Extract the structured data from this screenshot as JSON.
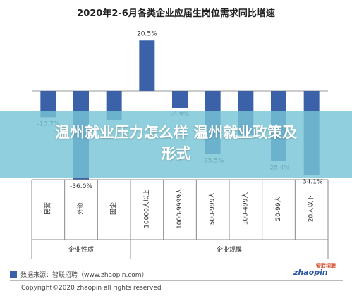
{
  "chart_data": {
    "type": "bar",
    "title": "2020年2-6月各类企业应届生岗位需求同比增速",
    "categories": [
      "民营",
      "外资",
      "国企",
      "10000人以上",
      "1000-9999人",
      "500-999人",
      "100-499人",
      "20-99人",
      "20人以下"
    ],
    "values": [
      -10.7,
      -36.0,
      -12.0,
      20.5,
      -6.9,
      -25.5,
      -18.0,
      -28.4,
      -34.1
    ],
    "data_labels": [
      "-10.7%",
      "-36.0%",
      "",
      "20.5%",
      "-6.9%",
      "-25.5%",
      "",
      "-28.4%",
      "-34.1%"
    ],
    "groups": [
      {
        "label": "企业性质",
        "start": 0,
        "end": 2
      },
      {
        "label": "企业规模",
        "start": 3,
        "end": 8
      }
    ],
    "ylim": [
      -40,
      25
    ],
    "grid": false,
    "bar_color": "#3b62a8"
  },
  "overlay": {
    "line1": "温州就业压力怎么样 温州就业政策及",
    "line2": "形式"
  },
  "footer": {
    "source": "数据来源：智联招聘（www.zhaopin.com）",
    "copyright": "Copyright©2020 zhaopin all rights reserved",
    "logo_text": "zhaopin",
    "logo_sub": "智联招聘"
  }
}
